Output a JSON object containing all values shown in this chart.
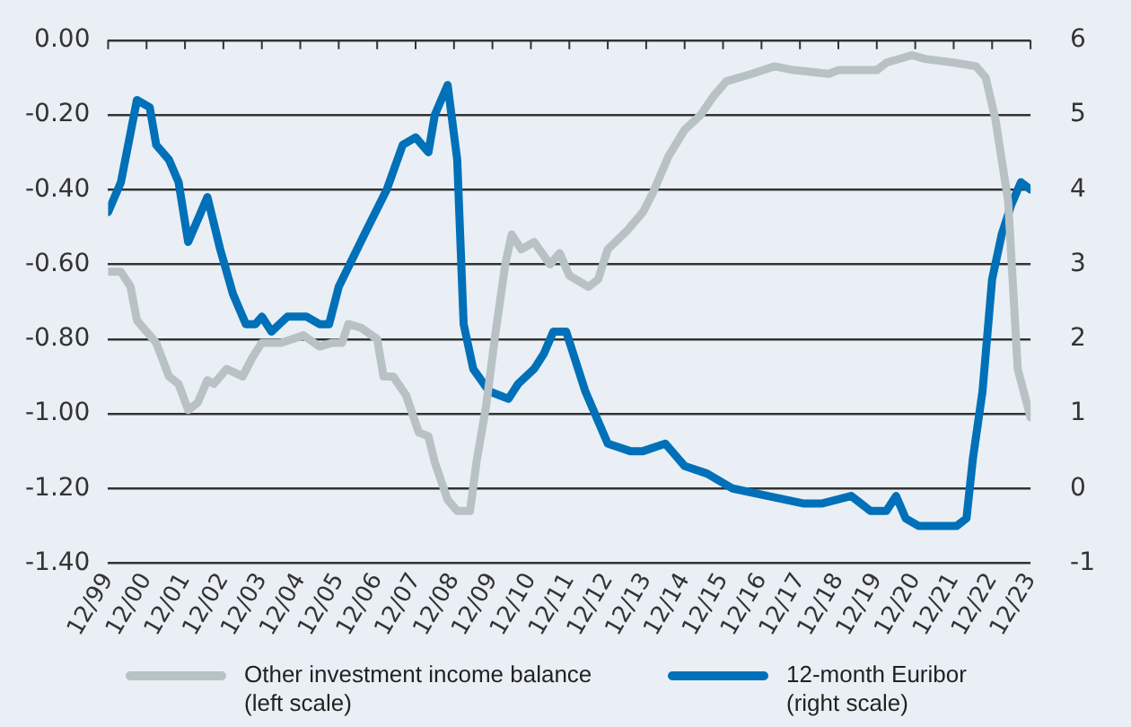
{
  "chart_data": {
    "type": "line",
    "x": [
      "1999-12",
      "2000-04",
      "2000-07",
      "2000-09",
      "2001-03",
      "2001-07",
      "2001-10",
      "2002-01",
      "2002-04",
      "2002-07",
      "2002-09",
      "2003-01",
      "2003-06",
      "2003-09",
      "2003-12",
      "2004-06",
      "2005-01",
      "2005-06",
      "2005-10",
      "2006-01",
      "2006-03",
      "2006-07",
      "2006-12",
      "2007-02",
      "2007-05",
      "2007-09",
      "2008-01",
      "2008-04",
      "2008-06",
      "2008-10",
      "2009-01",
      "2009-05",
      "2009-07",
      "2009-10",
      "2010-01",
      "2010-04",
      "2010-06",
      "2010-09",
      "2011-01",
      "2011-06",
      "2011-09",
      "2011-12",
      "2012-06",
      "2012-09",
      "2012-12",
      "2013-06",
      "2013-11",
      "2014-02",
      "2014-07",
      "2014-12",
      "2015-05",
      "2015-09",
      "2016-01",
      "2016-09",
      "2017-04",
      "2017-10",
      "2018-09",
      "2018-12",
      "2019-12",
      "2020-03",
      "2020-11",
      "2021-03",
      "2021-12",
      "2022-07",
      "2022-10",
      "2023-01",
      "2023-05",
      "2023-08",
      "2023-12"
    ],
    "series": [
      {
        "name": "Other investment income balance (left scale)",
        "color": "#b8c1c4",
        "values": [
          -0.62,
          -0.62,
          -0.66,
          -0.75,
          -0.81,
          -0.9,
          -0.92,
          -0.99,
          -0.97,
          -0.91,
          -0.92,
          -0.88,
          -0.9,
          -0.85,
          -0.81,
          -0.81,
          -0.79,
          -0.82,
          -0.81,
          -0.81,
          -0.76,
          -0.77,
          -0.8,
          -0.9,
          -0.9,
          -0.95,
          -1.05,
          -1.06,
          -1.13,
          -1.23,
          -1.26,
          -1.26,
          -1.13,
          -0.98,
          -0.78,
          -0.6,
          -0.52,
          -0.56,
          -0.54,
          -0.6,
          -0.57,
          -0.63,
          -0.66,
          -0.64,
          -0.56,
          -0.51,
          -0.46,
          -0.41,
          -0.31,
          -0.24,
          -0.2,
          -0.15,
          -0.11,
          -0.09,
          -0.07,
          -0.08,
          -0.09,
          -0.08,
          -0.08,
          -0.06,
          -0.04,
          -0.05,
          -0.06,
          -0.07,
          -0.1,
          -0.21,
          -0.43,
          -0.88,
          -1.01
        ]
      },
      {
        "name": "12-month Euribor (right scale)",
        "color": "#0070b8",
        "axis": "y2",
        "x": [
          "1999-12",
          "2000-04",
          "2000-09",
          "2001-01",
          "2001-03",
          "2001-07",
          "2001-10",
          "2002-01",
          "2002-07",
          "2002-11",
          "2003-03",
          "2003-07",
          "2003-10",
          "2003-12",
          "2004-03",
          "2004-08",
          "2005-02",
          "2005-06",
          "2005-09",
          "2005-12",
          "2006-08",
          "2007-03",
          "2007-08",
          "2007-12",
          "2008-04",
          "2008-06",
          "2008-10",
          "2009-01",
          "2009-03",
          "2009-06",
          "2009-11",
          "2010-05",
          "2010-08",
          "2011-01",
          "2011-04",
          "2011-07",
          "2011-11",
          "2012-05",
          "2012-12",
          "2013-07",
          "2013-11",
          "2014-06",
          "2014-12",
          "2015-07",
          "2016-03",
          "2017-02",
          "2018-01",
          "2018-07",
          "2019-04",
          "2019-07",
          "2019-10",
          "2020-03",
          "2020-06",
          "2020-09",
          "2021-01",
          "2021-08",
          "2022-01",
          "2022-04",
          "2022-06",
          "2022-09",
          "2022-12",
          "2023-03",
          "2023-06",
          "2023-09",
          "2023-12"
        ],
        "values": [
          3.7,
          4.1,
          5.2,
          5.1,
          4.6,
          4.4,
          4.1,
          3.3,
          3.9,
          3.2,
          2.6,
          2.2,
          2.2,
          2.3,
          2.1,
          2.3,
          2.3,
          2.2,
          2.2,
          2.7,
          3.4,
          4.0,
          4.6,
          4.7,
          4.5,
          5.0,
          5.4,
          4.4,
          2.2,
          1.6,
          1.3,
          1.2,
          1.4,
          1.6,
          1.8,
          2.1,
          2.1,
          1.3,
          0.6,
          0.5,
          0.5,
          0.6,
          0.3,
          0.2,
          0.0,
          -0.1,
          -0.2,
          -0.2,
          -0.1,
          -0.2,
          -0.3,
          -0.3,
          -0.1,
          -0.4,
          -0.5,
          -0.5,
          -0.5,
          -0.4,
          0.4,
          1.3,
          2.8,
          3.4,
          3.8,
          4.1,
          4.0
        ]
      }
    ],
    "xlim": [
      "1999-12",
      "2023-12"
    ],
    "xticks": [
      {
        "value": "1999-12",
        "label": "12/99"
      },
      {
        "value": "2000-12",
        "label": "12/00"
      },
      {
        "value": "2001-12",
        "label": "12/01"
      },
      {
        "value": "2002-12",
        "label": "12/02"
      },
      {
        "value": "2003-12",
        "label": "12/03"
      },
      {
        "value": "2004-12",
        "label": "12/04"
      },
      {
        "value": "2005-12",
        "label": "12/05"
      },
      {
        "value": "2006-12",
        "label": "12/06"
      },
      {
        "value": "2007-12",
        "label": "12/07"
      },
      {
        "value": "2008-12",
        "label": "12/08"
      },
      {
        "value": "2009-12",
        "label": "12/09"
      },
      {
        "value": "2010-12",
        "label": "12/10"
      },
      {
        "value": "2011-12",
        "label": "12/11"
      },
      {
        "value": "2012-12",
        "label": "12/12"
      },
      {
        "value": "2013-12",
        "label": "12/13"
      },
      {
        "value": "2014-12",
        "label": "12/14"
      },
      {
        "value": "2015-12",
        "label": "12/15"
      },
      {
        "value": "2016-12",
        "label": "12/16"
      },
      {
        "value": "2017-12",
        "label": "12/17"
      },
      {
        "value": "2018-12",
        "label": "12/18"
      },
      {
        "value": "2019-12",
        "label": "12/19"
      },
      {
        "value": "2020-12",
        "label": "12/20"
      },
      {
        "value": "2021-12",
        "label": "12/21"
      },
      {
        "value": "2022-12",
        "label": "12/22"
      },
      {
        "value": "2023-12",
        "label": "12/23"
      }
    ],
    "ylim": [
      -1.4,
      0
    ],
    "yticks": [
      {
        "value": -1.4,
        "label": "-1.40"
      },
      {
        "value": -1.2,
        "label": "-1.20"
      },
      {
        "value": -1,
        "label": "-1.00"
      },
      {
        "value": -0.8,
        "label": "-0.80"
      },
      {
        "value": -0.6,
        "label": "-0.60"
      },
      {
        "value": -0.4,
        "label": "-0.40"
      },
      {
        "value": -0.2,
        "label": "-0.20"
      },
      {
        "value": 0,
        "label": "0.00"
      }
    ],
    "y2lim": [
      -1,
      6
    ],
    "y2ticks": [
      -1,
      0,
      1,
      2,
      3,
      4,
      5,
      6
    ],
    "grid": "y",
    "legend": "bottom",
    "marker": "none",
    "line_style": "solid"
  }
}
